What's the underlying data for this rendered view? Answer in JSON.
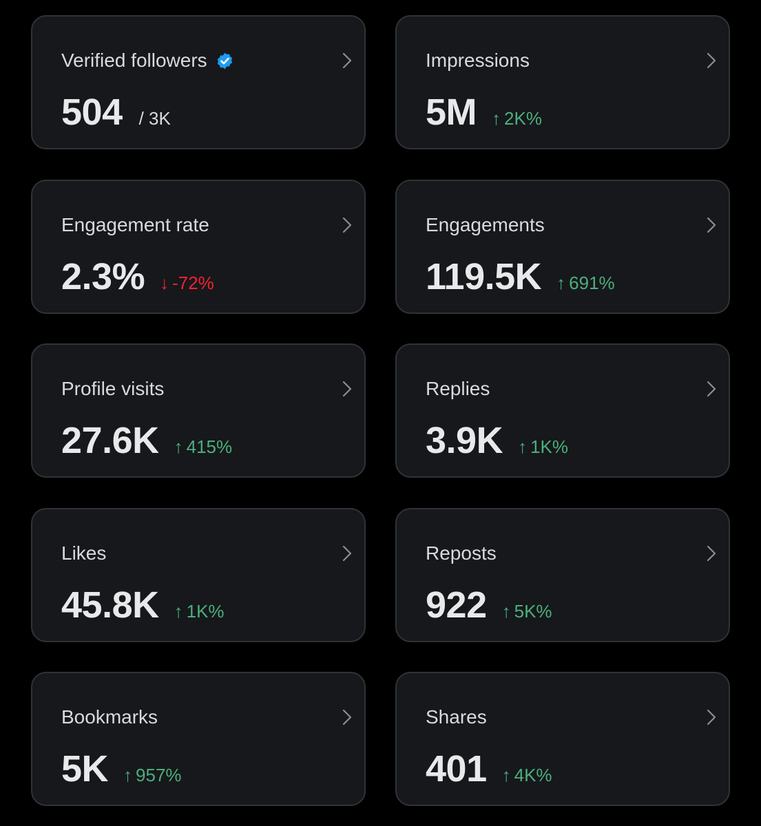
{
  "colors": {
    "background": "#000000",
    "card": "#16181c",
    "card_border": "#2f3336",
    "positive": "#4caf7a",
    "negative": "#f4212e",
    "verified": "#1d9bf0"
  },
  "cards": [
    {
      "title": "Verified followers",
      "value": "504",
      "secondary": "/ 3K",
      "verified_icon": "verified-badge-icon"
    },
    {
      "title": "Impressions",
      "value": "5M",
      "change": "2K%",
      "direction": "up",
      "arrow": "↑"
    },
    {
      "title": "Engagement rate",
      "value": "2.3%",
      "change": "-72%",
      "direction": "down",
      "arrow": "↓"
    },
    {
      "title": "Engagements",
      "value": "119.5K",
      "change": "691%",
      "direction": "up",
      "arrow": "↑"
    },
    {
      "title": "Profile visits",
      "value": "27.6K",
      "change": "415%",
      "direction": "up",
      "arrow": "↑"
    },
    {
      "title": "Replies",
      "value": "3.9K",
      "change": "1K%",
      "direction": "up",
      "arrow": "↑"
    },
    {
      "title": "Likes",
      "value": "45.8K",
      "change": "1K%",
      "direction": "up",
      "arrow": "↑"
    },
    {
      "title": "Reposts",
      "value": "922",
      "change": "5K%",
      "direction": "up",
      "arrow": "↑"
    },
    {
      "title": "Bookmarks",
      "value": "5K",
      "change": "957%",
      "direction": "up",
      "arrow": "↑"
    },
    {
      "title": "Shares",
      "value": "401",
      "change": "4K%",
      "direction": "up",
      "arrow": "↑"
    }
  ]
}
